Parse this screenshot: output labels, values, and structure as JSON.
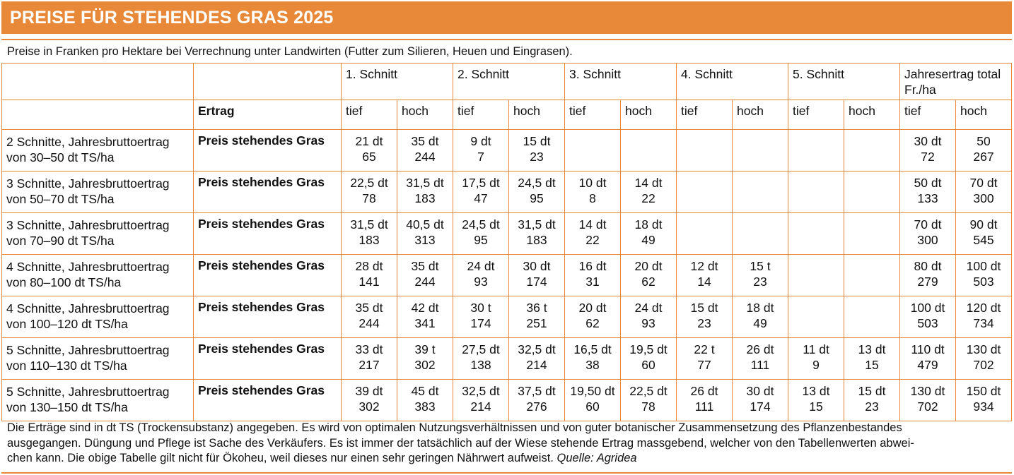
{
  "title": "PREISE FÜR STEHENDES GRAS 2025",
  "intro": "Preise in Franken pro Hektare bei Verrechnung unter Landwirten (Futter zum Silieren, Heuen und Eingrasen).",
  "table": {
    "group_headers": [
      "1. Schnitt",
      "2. Schnitt",
      "3. Schnitt",
      "4. Schnitt",
      "5. Schnitt",
      "Jahresertrag total Fr./ha"
    ],
    "ertrag_label": "Ertrag",
    "sub_headers": [
      "tief",
      "hoch",
      "tief",
      "hoch",
      "tief",
      "hoch",
      "tief",
      "hoch",
      "tief",
      "hoch",
      "tief",
      "hoch"
    ],
    "rows": [
      {
        "label_line1": "2 Schnitte, Jahresbruttoertrag",
        "label_line2": "von 30–50 dt TS/ha",
        "price_label": "Preis stehendes Gras",
        "cells": [
          [
            "21 dt",
            "65"
          ],
          [
            "35 dt",
            "244"
          ],
          [
            "9 dt",
            "7"
          ],
          [
            "15 dt",
            "23"
          ],
          [
            "",
            ""
          ],
          [
            "",
            ""
          ],
          [
            "",
            ""
          ],
          [
            "",
            ""
          ],
          [
            "",
            ""
          ],
          [
            "",
            ""
          ],
          [
            "30 dt",
            "72"
          ],
          [
            "50",
            "267"
          ]
        ]
      },
      {
        "label_line1": "3 Schnitte, Jahresbruttoertrag",
        "label_line2": "von 50–70 dt TS/ha",
        "price_label": "Preis stehendes Gras",
        "cells": [
          [
            "22,5 dt",
            "78"
          ],
          [
            "31,5 dt",
            "183"
          ],
          [
            "17,5 dt",
            "47"
          ],
          [
            "24,5 dt",
            "95"
          ],
          [
            "10 dt",
            "8"
          ],
          [
            "14 dt",
            "22"
          ],
          [
            "",
            ""
          ],
          [
            "",
            ""
          ],
          [
            "",
            ""
          ],
          [
            "",
            ""
          ],
          [
            "50 dt",
            "133"
          ],
          [
            "70 dt",
            "300"
          ]
        ]
      },
      {
        "label_line1": "3 Schnitte, Jahresbruttoertrag",
        "label_line2": "von 70–90 dt TS/ha",
        "price_label": "Preis stehendes Gras",
        "cells": [
          [
            "31,5 dt",
            "183"
          ],
          [
            "40,5 dt",
            "313"
          ],
          [
            "24,5 dt",
            "95"
          ],
          [
            "31,5 dt",
            "183"
          ],
          [
            "14 dt",
            "22"
          ],
          [
            "18 dt",
            "49"
          ],
          [
            "",
            ""
          ],
          [
            "",
            ""
          ],
          [
            "",
            ""
          ],
          [
            "",
            ""
          ],
          [
            "70 dt",
            "300"
          ],
          [
            "90 dt",
            "545"
          ]
        ]
      },
      {
        "label_line1": "4 Schnitte, Jahresbruttoertrag",
        "label_line2": "von 80–100 dt TS/ha",
        "price_label": "Preis stehendes Gras",
        "cells": [
          [
            "28 dt",
            "141"
          ],
          [
            "35 dt",
            "244"
          ],
          [
            "24 dt",
            "93"
          ],
          [
            "30 dt",
            "174"
          ],
          [
            "16 dt",
            "31"
          ],
          [
            "20 dt",
            "62"
          ],
          [
            "12 dt",
            "14"
          ],
          [
            "15 t",
            "23"
          ],
          [
            "",
            ""
          ],
          [
            "",
            ""
          ],
          [
            "80 dt",
            "279"
          ],
          [
            "100 dt",
            "503"
          ]
        ]
      },
      {
        "label_line1": "4 Schnitte, Jahresbruttoertrag",
        "label_line2": "von 100–120 dt TS/ha",
        "price_label": "Preis stehendes Gras",
        "cells": [
          [
            "35 dt",
            "244"
          ],
          [
            "42 dt",
            "341"
          ],
          [
            "30 t",
            "174"
          ],
          [
            "36 t",
            "251"
          ],
          [
            "20 dt",
            "62"
          ],
          [
            "24 dt",
            "93"
          ],
          [
            "15 dt",
            "23"
          ],
          [
            "18 dt",
            "49"
          ],
          [
            "",
            ""
          ],
          [
            "",
            ""
          ],
          [
            "100 dt",
            "503"
          ],
          [
            "120 dt",
            "734"
          ]
        ]
      },
      {
        "label_line1": "5 Schnitte, Jahresbruttoertrag",
        "label_line2": "von 110–130 dt TS/ha",
        "price_label": "Preis stehendes Gras",
        "cells": [
          [
            "33 dt",
            "217"
          ],
          [
            "39 t",
            "302"
          ],
          [
            "27,5 dt",
            "138"
          ],
          [
            "32,5 dt",
            "214"
          ],
          [
            "16,5 dt",
            "38"
          ],
          [
            "19,5 dt",
            "60"
          ],
          [
            "22 t",
            "77"
          ],
          [
            "26 dt",
            "111"
          ],
          [
            "11 dt",
            "9"
          ],
          [
            "13 dt",
            "15"
          ],
          [
            "110 dt",
            "479"
          ],
          [
            "130 dt",
            "702"
          ]
        ]
      },
      {
        "label_line1": "5 Schnitte, Jahresbruttoertrag",
        "label_line2": "von 130–150 dt TS/ha",
        "price_label": "Preis stehendes Gras",
        "cells": [
          [
            "39 dt",
            "302"
          ],
          [
            "45 dt",
            "383"
          ],
          [
            "32,5 dt",
            "214"
          ],
          [
            "37,5 dt",
            "276"
          ],
          [
            "19,50 dt",
            "60"
          ],
          [
            "22,5 dt",
            "78"
          ],
          [
            "26 dt",
            "111"
          ],
          [
            "30 dt",
            "174"
          ],
          [
            "13 dt",
            "15"
          ],
          [
            "15 dt",
            "23"
          ],
          [
            "130 dt",
            "702"
          ],
          [
            "150 dt",
            "934"
          ]
        ]
      }
    ]
  },
  "footer": {
    "line1": "Die Erträge sind in dt TS (Trockensubstanz) angegeben. Es wird von optimalen Nutzungsverhältnissen und von guter botanischer Zusammensetzung des Pflanzenbestandes",
    "line2": "ausgegangen. Düngung und Pflege ist Sache des Verkäufers. Es ist immer der tatsächlich auf der Wiese stehende Ertrag massgebend, welcher von den Tabellenwerten abwei-",
    "line3": "chen kann. Die obige Tabelle gilt nicht für Ökoheu, weil dieses nur einen sehr geringen Nährwert aufweist.",
    "source": "Quelle: Agridea"
  },
  "colors": {
    "accent": "#e8893a",
    "header_text": "#ffffff"
  }
}
